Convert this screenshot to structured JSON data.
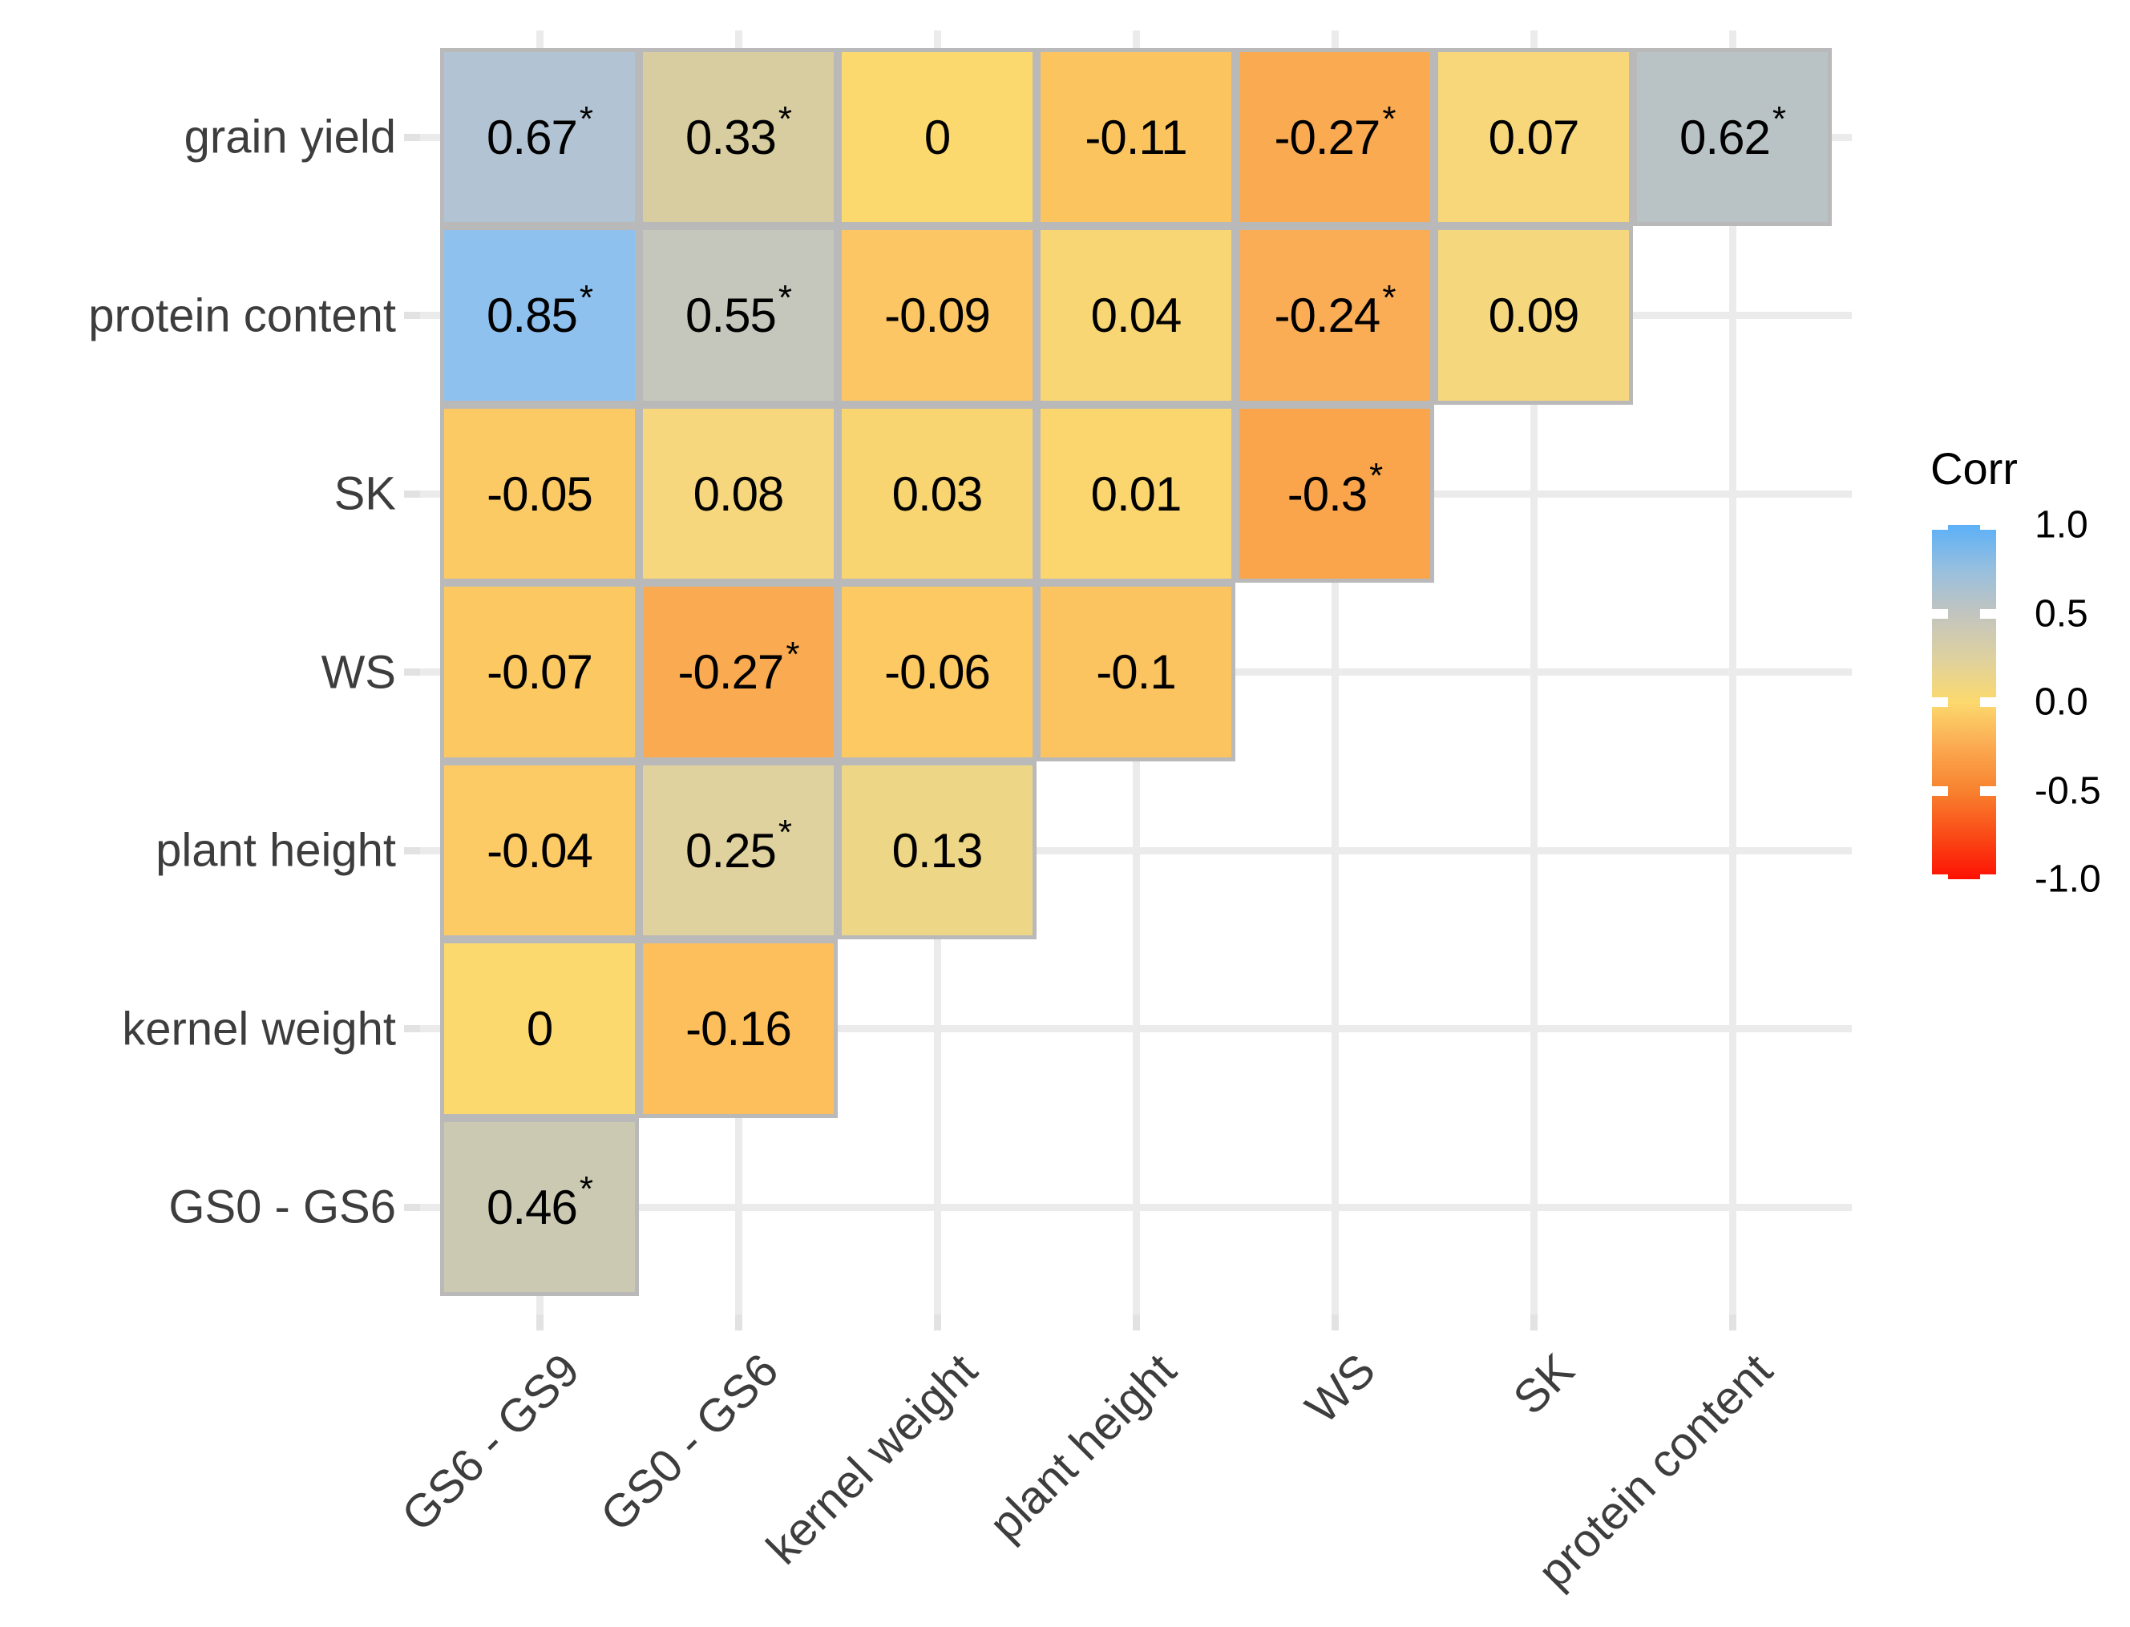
{
  "style": {
    "background": "#ffffff",
    "tile_border": "#b9b9b9",
    "gridline": "#ebebeb",
    "axis_tick": "#e2e2e2",
    "axis_text": "#3d3d3d",
    "value_text": "#000000"
  },
  "chart_data": {
    "type": "heatmap",
    "subtype": "correlation-matrix-lower-triangle",
    "legend_title": "Corr",
    "x_categories": [
      "GS6 - GS9",
      "GS0 - GS6",
      "kernel weight",
      "plant height",
      "WS",
      "SK",
      "protein content"
    ],
    "y_categories": [
      "grain yield",
      "protein content",
      "SK",
      "WS",
      "plant height",
      "kernel weight",
      "GS0 - GS6"
    ],
    "colorbar": {
      "tick_labels": [
        "1.0",
        "0.5",
        "0.0",
        "-0.5",
        "-1.0"
      ],
      "domain": [
        -1,
        1
      ],
      "gradient_stops": [
        {
          "value": 1.0,
          "color": "#5cb0f8"
        },
        {
          "value": 0.75,
          "color": "#96bfdf"
        },
        {
          "value": 0.5,
          "color": "#c2c4bf"
        },
        {
          "value": 0.25,
          "color": "#ded1a0"
        },
        {
          "value": 0.0,
          "color": "#fcd96e"
        },
        {
          "value": -0.25,
          "color": "#fbaa51"
        },
        {
          "value": -0.5,
          "color": "#f8822f"
        },
        {
          "value": -0.75,
          "color": "#fa4b17"
        },
        {
          "value": -1.0,
          "color": "#fc1103"
        }
      ]
    },
    "cells": [
      {
        "row": "grain yield",
        "col": "GS6 - GS9",
        "value": 0.67,
        "label": "0.67",
        "significant": true,
        "color": "#b2c4d3"
      },
      {
        "row": "grain yield",
        "col": "GS0 - GS6",
        "value": 0.33,
        "label": "0.33",
        "significant": true,
        "color": "#d8cda0"
      },
      {
        "row": "grain yield",
        "col": "kernel weight",
        "value": 0,
        "label": "0",
        "significant": false,
        "color": "#fcd96e"
      },
      {
        "row": "grain yield",
        "col": "plant height",
        "value": -0.11,
        "label": "-0.11",
        "significant": false,
        "color": "#fcc45e"
      },
      {
        "row": "grain yield",
        "col": "WS",
        "value": -0.27,
        "label": "-0.27",
        "significant": true,
        "color": "#faaa50"
      },
      {
        "row": "grain yield",
        "col": "SK",
        "value": 0.07,
        "label": "0.07",
        "significant": false,
        "color": "#f7d77a"
      },
      {
        "row": "grain yield",
        "col": "protein content",
        "value": 0.62,
        "label": "0.62",
        "significant": true,
        "color": "#b9c3c6"
      },
      {
        "row": "protein content",
        "col": "GS6 - GS9",
        "value": 0.85,
        "label": "0.85",
        "significant": true,
        "color": "#8fc1ee"
      },
      {
        "row": "protein content",
        "col": "GS0 - GS6",
        "value": 0.55,
        "label": "0.55",
        "significant": true,
        "color": "#c5c7bd"
      },
      {
        "row": "protein content",
        "col": "kernel weight",
        "value": -0.09,
        "label": "-0.09",
        "significant": false,
        "color": "#fcc664"
      },
      {
        "row": "protein content",
        "col": "plant height",
        "value": 0.04,
        "label": "0.04",
        "significant": false,
        "color": "#f9d674"
      },
      {
        "row": "protein content",
        "col": "WS",
        "value": -0.24,
        "label": "-0.24",
        "significant": true,
        "color": "#fbad55"
      },
      {
        "row": "protein content",
        "col": "SK",
        "value": 0.09,
        "label": "0.09",
        "significant": false,
        "color": "#f5d77e"
      },
      {
        "row": "SK",
        "col": "GS6 - GS9",
        "value": -0.05,
        "label": "-0.05",
        "significant": false,
        "color": "#fcca64"
      },
      {
        "row": "SK",
        "col": "GS0 - GS6",
        "value": 0.08,
        "label": "0.08",
        "significant": false,
        "color": "#f6d77d"
      },
      {
        "row": "SK",
        "col": "kernel weight",
        "value": 0.03,
        "label": "0.03",
        "significant": false,
        "color": "#f9d571"
      },
      {
        "row": "SK",
        "col": "plant height",
        "value": 0.01,
        "label": "0.01",
        "significant": false,
        "color": "#fbd56d"
      },
      {
        "row": "SK",
        "col": "WS",
        "value": -0.3,
        "label": "-0.3",
        "significant": true,
        "color": "#faa54c"
      },
      {
        "row": "WS",
        "col": "GS6 - GS9",
        "value": -0.07,
        "label": "-0.07",
        "significant": false,
        "color": "#fcc862"
      },
      {
        "row": "WS",
        "col": "GS0 - GS6",
        "value": -0.27,
        "label": "-0.27",
        "significant": true,
        "color": "#faaa50"
      },
      {
        "row": "WS",
        "col": "kernel weight",
        "value": -0.06,
        "label": "-0.06",
        "significant": false,
        "color": "#fcc963"
      },
      {
        "row": "WS",
        "col": "plant height",
        "value": -0.1,
        "label": "-0.1",
        "significant": false,
        "color": "#fcc461"
      },
      {
        "row": "plant height",
        "col": "GS6 - GS9",
        "value": -0.04,
        "label": "-0.04",
        "significant": false,
        "color": "#fccb66"
      },
      {
        "row": "plant height",
        "col": "GS0 - GS6",
        "value": 0.25,
        "label": "0.25",
        "significant": true,
        "color": "#e0d29e"
      },
      {
        "row": "plant height",
        "col": "kernel weight",
        "value": 0.13,
        "label": "0.13",
        "significant": false,
        "color": "#eed687"
      },
      {
        "row": "kernel weight",
        "col": "GS6 - GS9",
        "value": 0,
        "label": "0",
        "significant": false,
        "color": "#fcd96e"
      },
      {
        "row": "kernel weight",
        "col": "GS0 - GS6",
        "value": -0.16,
        "label": "-0.16",
        "significant": false,
        "color": "#fcbf5c"
      },
      {
        "row": "GS0 - GS6",
        "col": "GS6 - GS9",
        "value": 0.46,
        "label": "0.46",
        "significant": true,
        "color": "#cbc9b2"
      }
    ]
  }
}
